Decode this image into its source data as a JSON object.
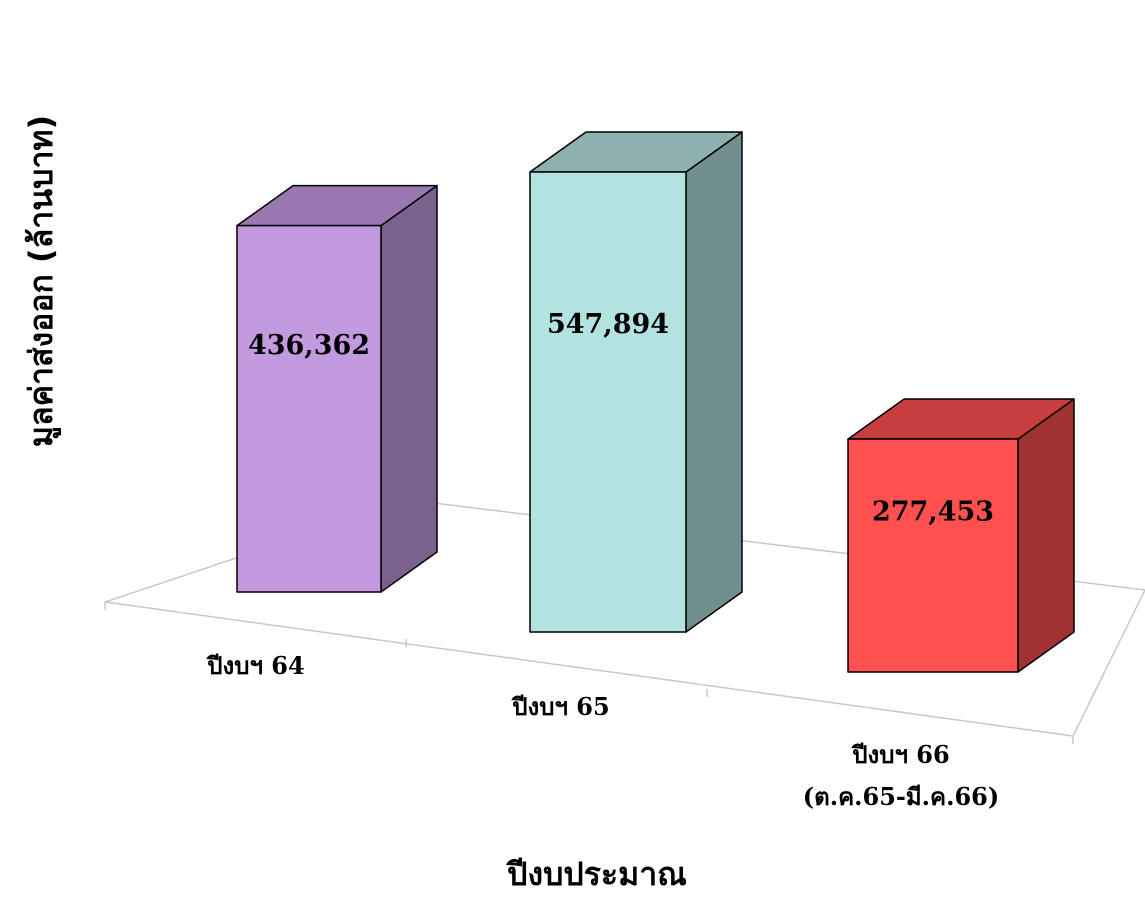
{
  "chart_data": {
    "type": "bar",
    "title": "",
    "xlabel": "ปีงบประมาณ",
    "ylabel": "มูลค่าส่งออก (ล้านบาท)",
    "categories": [
      [
        "ปีงบฯ 64"
      ],
      [
        "ปีงบฯ 65"
      ],
      [
        "ปีงบฯ 66",
        "(ต.ค.65-มี.ค.66)"
      ]
    ],
    "values": [
      436362,
      547894,
      277453
    ],
    "value_labels": [
      "436,362",
      "547,894",
      "277,453"
    ],
    "colors": [
      "#c39ae0",
      "#b3e3e1",
      "#ff5050"
    ],
    "ylim": [
      0,
      600000
    ],
    "grid": false,
    "legend": "none",
    "style": "3d-column"
  }
}
